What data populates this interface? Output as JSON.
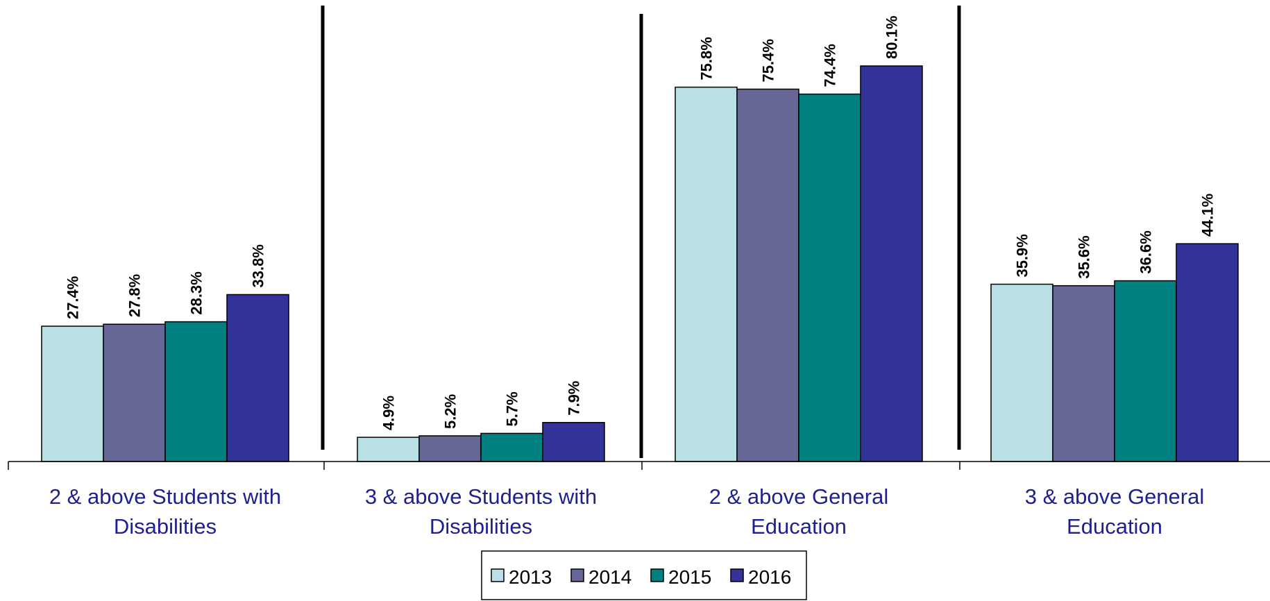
{
  "chart_data": {
    "type": "bar",
    "categories": [
      [
        "2 & above Students with",
        "Disabilities"
      ],
      [
        "3 & above Students with",
        "Disabilities"
      ],
      [
        "2 & above General",
        "Education"
      ],
      [
        "3 & above General",
        "Education"
      ]
    ],
    "series": [
      {
        "name": "2013",
        "color": "#b9e1e5",
        "values": [
          27.4,
          4.9,
          75.8,
          35.9
        ],
        "labels": [
          "27.4%",
          "4.9%",
          "75.8%",
          "35.9%"
        ]
      },
      {
        "name": "2014",
        "color": "#676797",
        "values": [
          27.8,
          5.2,
          75.4,
          35.6
        ],
        "labels": [
          "27.8%",
          "5.2%",
          "75.4%",
          "35.6%"
        ]
      },
      {
        "name": "2015",
        "color": "#008080",
        "values": [
          28.3,
          5.7,
          74.4,
          36.6
        ],
        "labels": [
          "28.3%",
          "5.7%",
          "74.4%",
          "36.6%"
        ]
      },
      {
        "name": "2016",
        "color": "#333399",
        "values": [
          33.8,
          7.9,
          80.1,
          44.1
        ],
        "labels": [
          "33.8%",
          "7.9%",
          "80.1%",
          "44.1%"
        ]
      }
    ],
    "ylim": [
      0,
      92
    ],
    "grid": false,
    "legend_position": "bottom-center",
    "category_label_color": "#1f1f8f"
  }
}
